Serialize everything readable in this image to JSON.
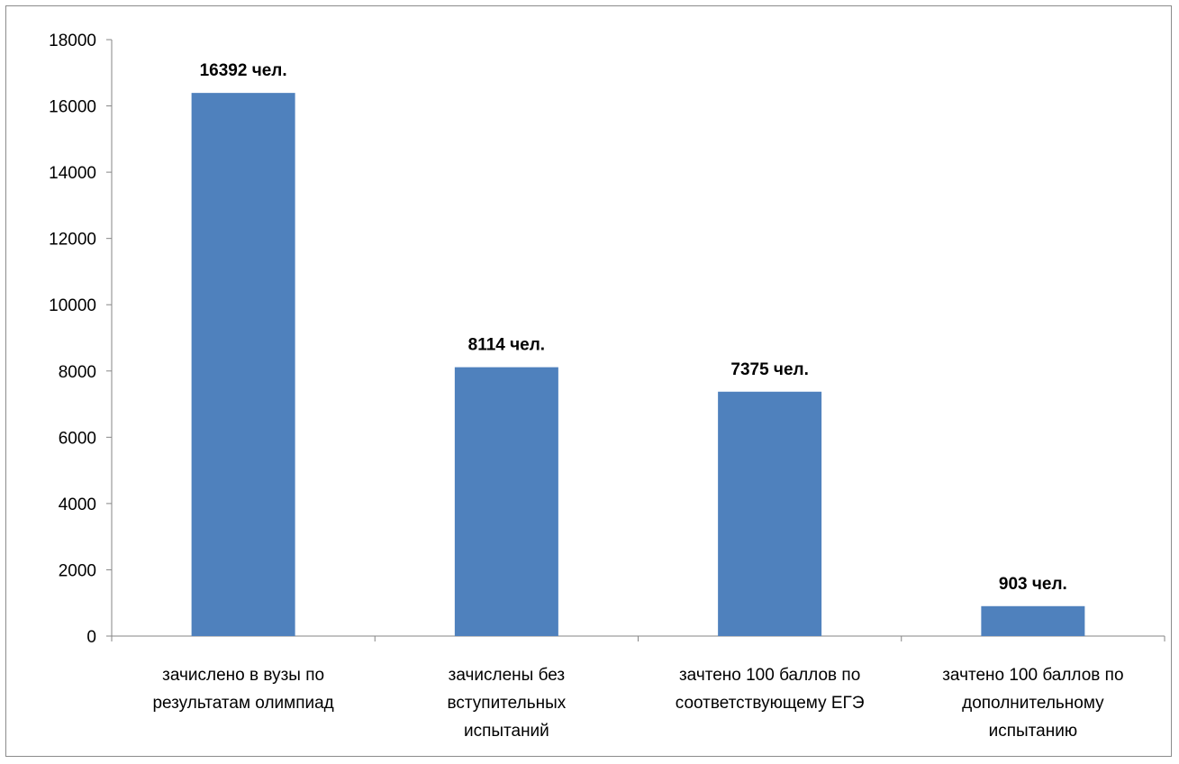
{
  "chart_data": {
    "type": "bar",
    "title": "",
    "xlabel": "",
    "ylabel": "",
    "ylim": [
      0,
      18000
    ],
    "yticks": [
      0,
      2000,
      4000,
      6000,
      8000,
      10000,
      12000,
      14000,
      16000,
      18000
    ],
    "grid": false,
    "legend": "none",
    "bar_color": "#4f81bd",
    "categories": [
      [
        "зачислено в вузы по",
        "результатам олимпиад"
      ],
      [
        "зачислены без",
        "вступительных",
        "испытаний"
      ],
      [
        "зачтено 100 баллов по",
        "соответствующему ЕГЭ"
      ],
      [
        "зачтено 100 баллов по",
        "дополнительному",
        "испытанию"
      ]
    ],
    "values": [
      16392,
      8114,
      7375,
      903
    ],
    "data_labels": [
      "16392 чел.",
      "8114 чел.",
      "7375 чел.",
      "903 чел."
    ]
  }
}
